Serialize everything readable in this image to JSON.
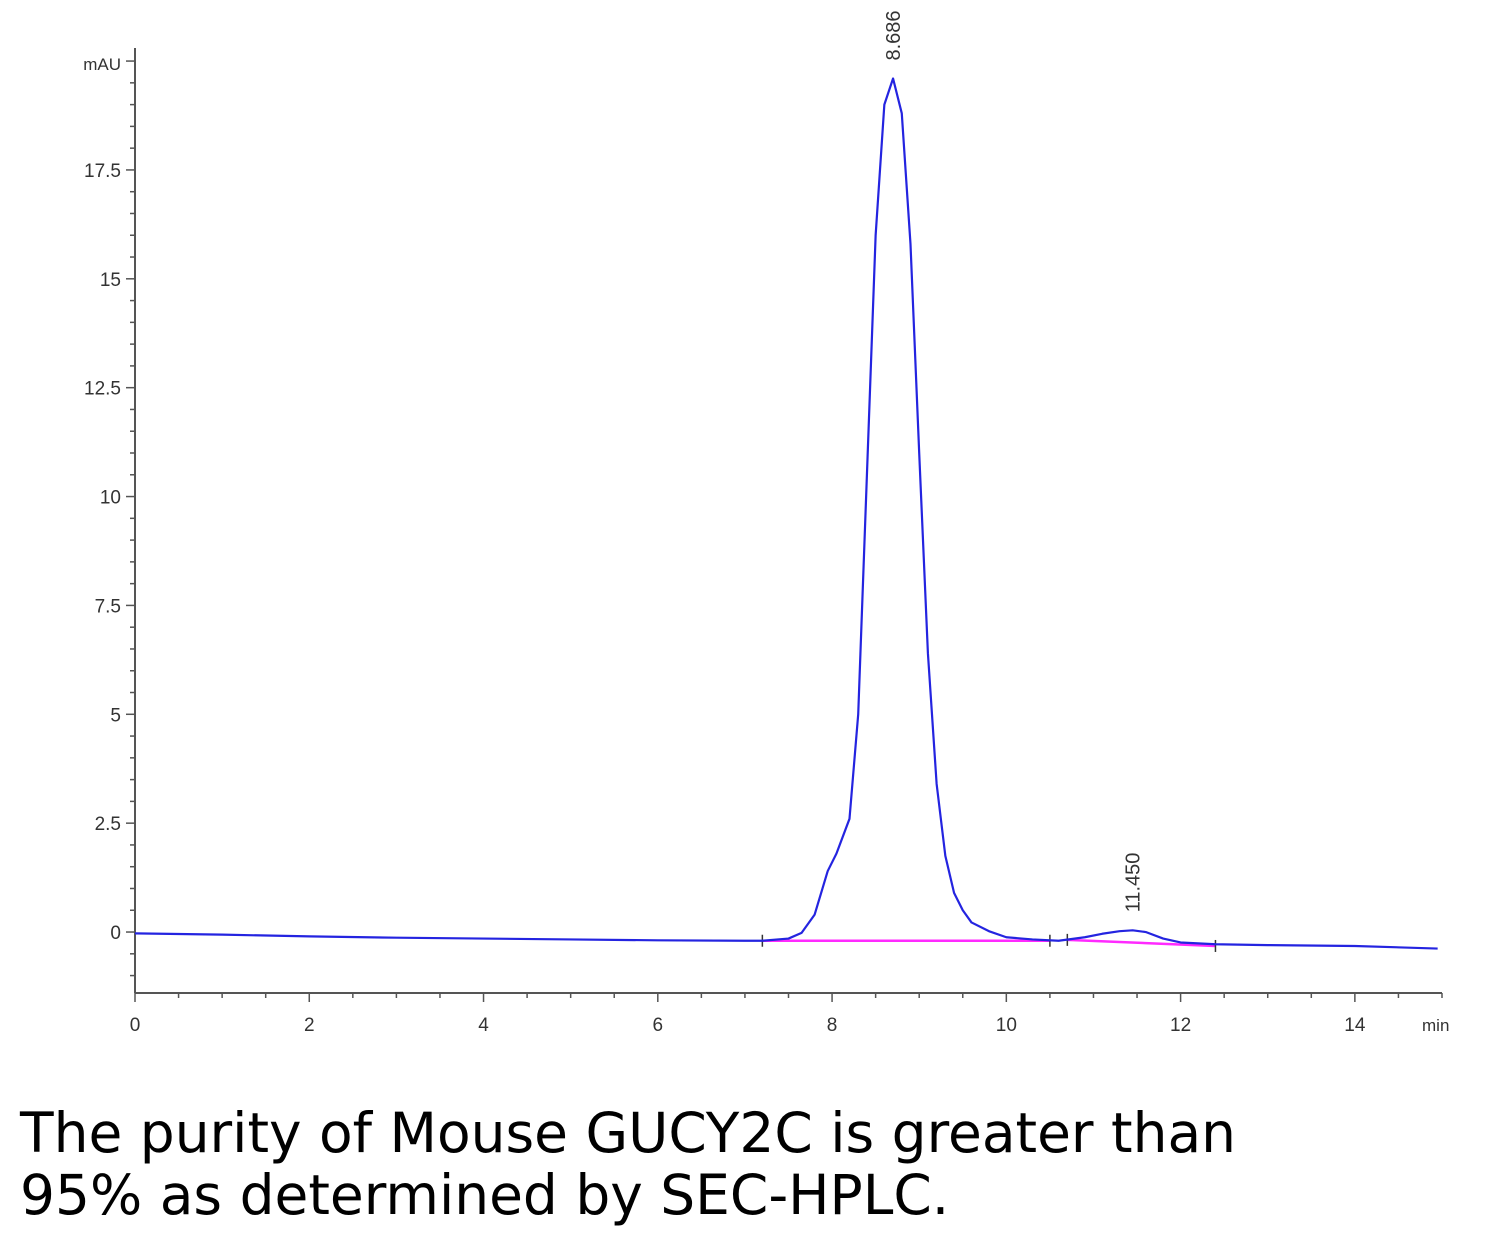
{
  "chart_data": {
    "type": "line",
    "title": "",
    "xlabel": "",
    "ylabel": "",
    "y_unit": "mAU",
    "x_unit": "min",
    "xlim": [
      0,
      15
    ],
    "ylim": [
      -1.4,
      20.3
    ],
    "x_ticks": [
      {
        "value": 0,
        "label": "0"
      },
      {
        "value": 2,
        "label": "2"
      },
      {
        "value": 4,
        "label": "4"
      },
      {
        "value": 6,
        "label": "6"
      },
      {
        "value": 8,
        "label": "8"
      },
      {
        "value": 10,
        "label": "10"
      },
      {
        "value": 12,
        "label": "12"
      },
      {
        "value": 14,
        "label": "14"
      }
    ],
    "y_ticks": [
      {
        "value": 0,
        "label": "0"
      },
      {
        "value": 2.5,
        "label": "2.5"
      },
      {
        "value": 5,
        "label": "5"
      },
      {
        "value": 7.5,
        "label": "7.5"
      },
      {
        "value": 10,
        "label": "10"
      },
      {
        "value": 12.5,
        "label": "12.5"
      },
      {
        "value": 15,
        "label": "15"
      },
      {
        "value": 17.5,
        "label": "17.5"
      }
    ],
    "grid": false,
    "legend": "none",
    "series": [
      {
        "color": "#2424e0",
        "x": [
          0,
          1,
          2,
          3,
          4,
          5,
          6,
          7,
          7.2,
          7.5,
          7.65,
          7.8,
          7.95,
          8.05,
          8.2,
          8.3,
          8.4,
          8.5,
          8.6,
          8.7,
          8.8,
          8.9,
          9.0,
          9.1,
          9.2,
          9.3,
          9.4,
          9.5,
          9.6,
          9.8,
          10.0,
          10.3,
          10.6,
          10.9,
          11.1,
          11.3,
          11.45,
          11.6,
          11.8,
          12.0,
          12.4,
          13,
          14,
          14.95
        ],
        "y": [
          -0.03,
          -0.06,
          -0.1,
          -0.13,
          -0.15,
          -0.17,
          -0.19,
          -0.2,
          -0.2,
          -0.15,
          -0.02,
          0.4,
          1.4,
          1.8,
          2.6,
          5.0,
          10.5,
          16.0,
          19.0,
          19.6,
          18.8,
          15.8,
          11.0,
          6.4,
          3.4,
          1.75,
          0.9,
          0.5,
          0.22,
          0.02,
          -0.12,
          -0.17,
          -0.2,
          -0.12,
          -0.04,
          0.02,
          0.04,
          0.0,
          -0.15,
          -0.24,
          -0.28,
          -0.3,
          -0.32,
          -0.38
        ]
      }
    ],
    "baselines": [
      {
        "color": "#ff2aff",
        "x": [
          7.2,
          10.5
        ],
        "y": [
          -0.2,
          -0.2
        ]
      },
      {
        "color": "#ff2aff",
        "x": [
          10.7,
          12.4
        ],
        "y": [
          -0.18,
          -0.32
        ]
      }
    ],
    "annotations": [
      {
        "text": "8.686",
        "x": 8.7
      },
      {
        "text": "11.450",
        "x": 11.45
      }
    ]
  },
  "caption": {
    "line1": "The purity of Mouse GUCY2C is greater than",
    "line2": "95% as determined by SEC-HPLC."
  }
}
